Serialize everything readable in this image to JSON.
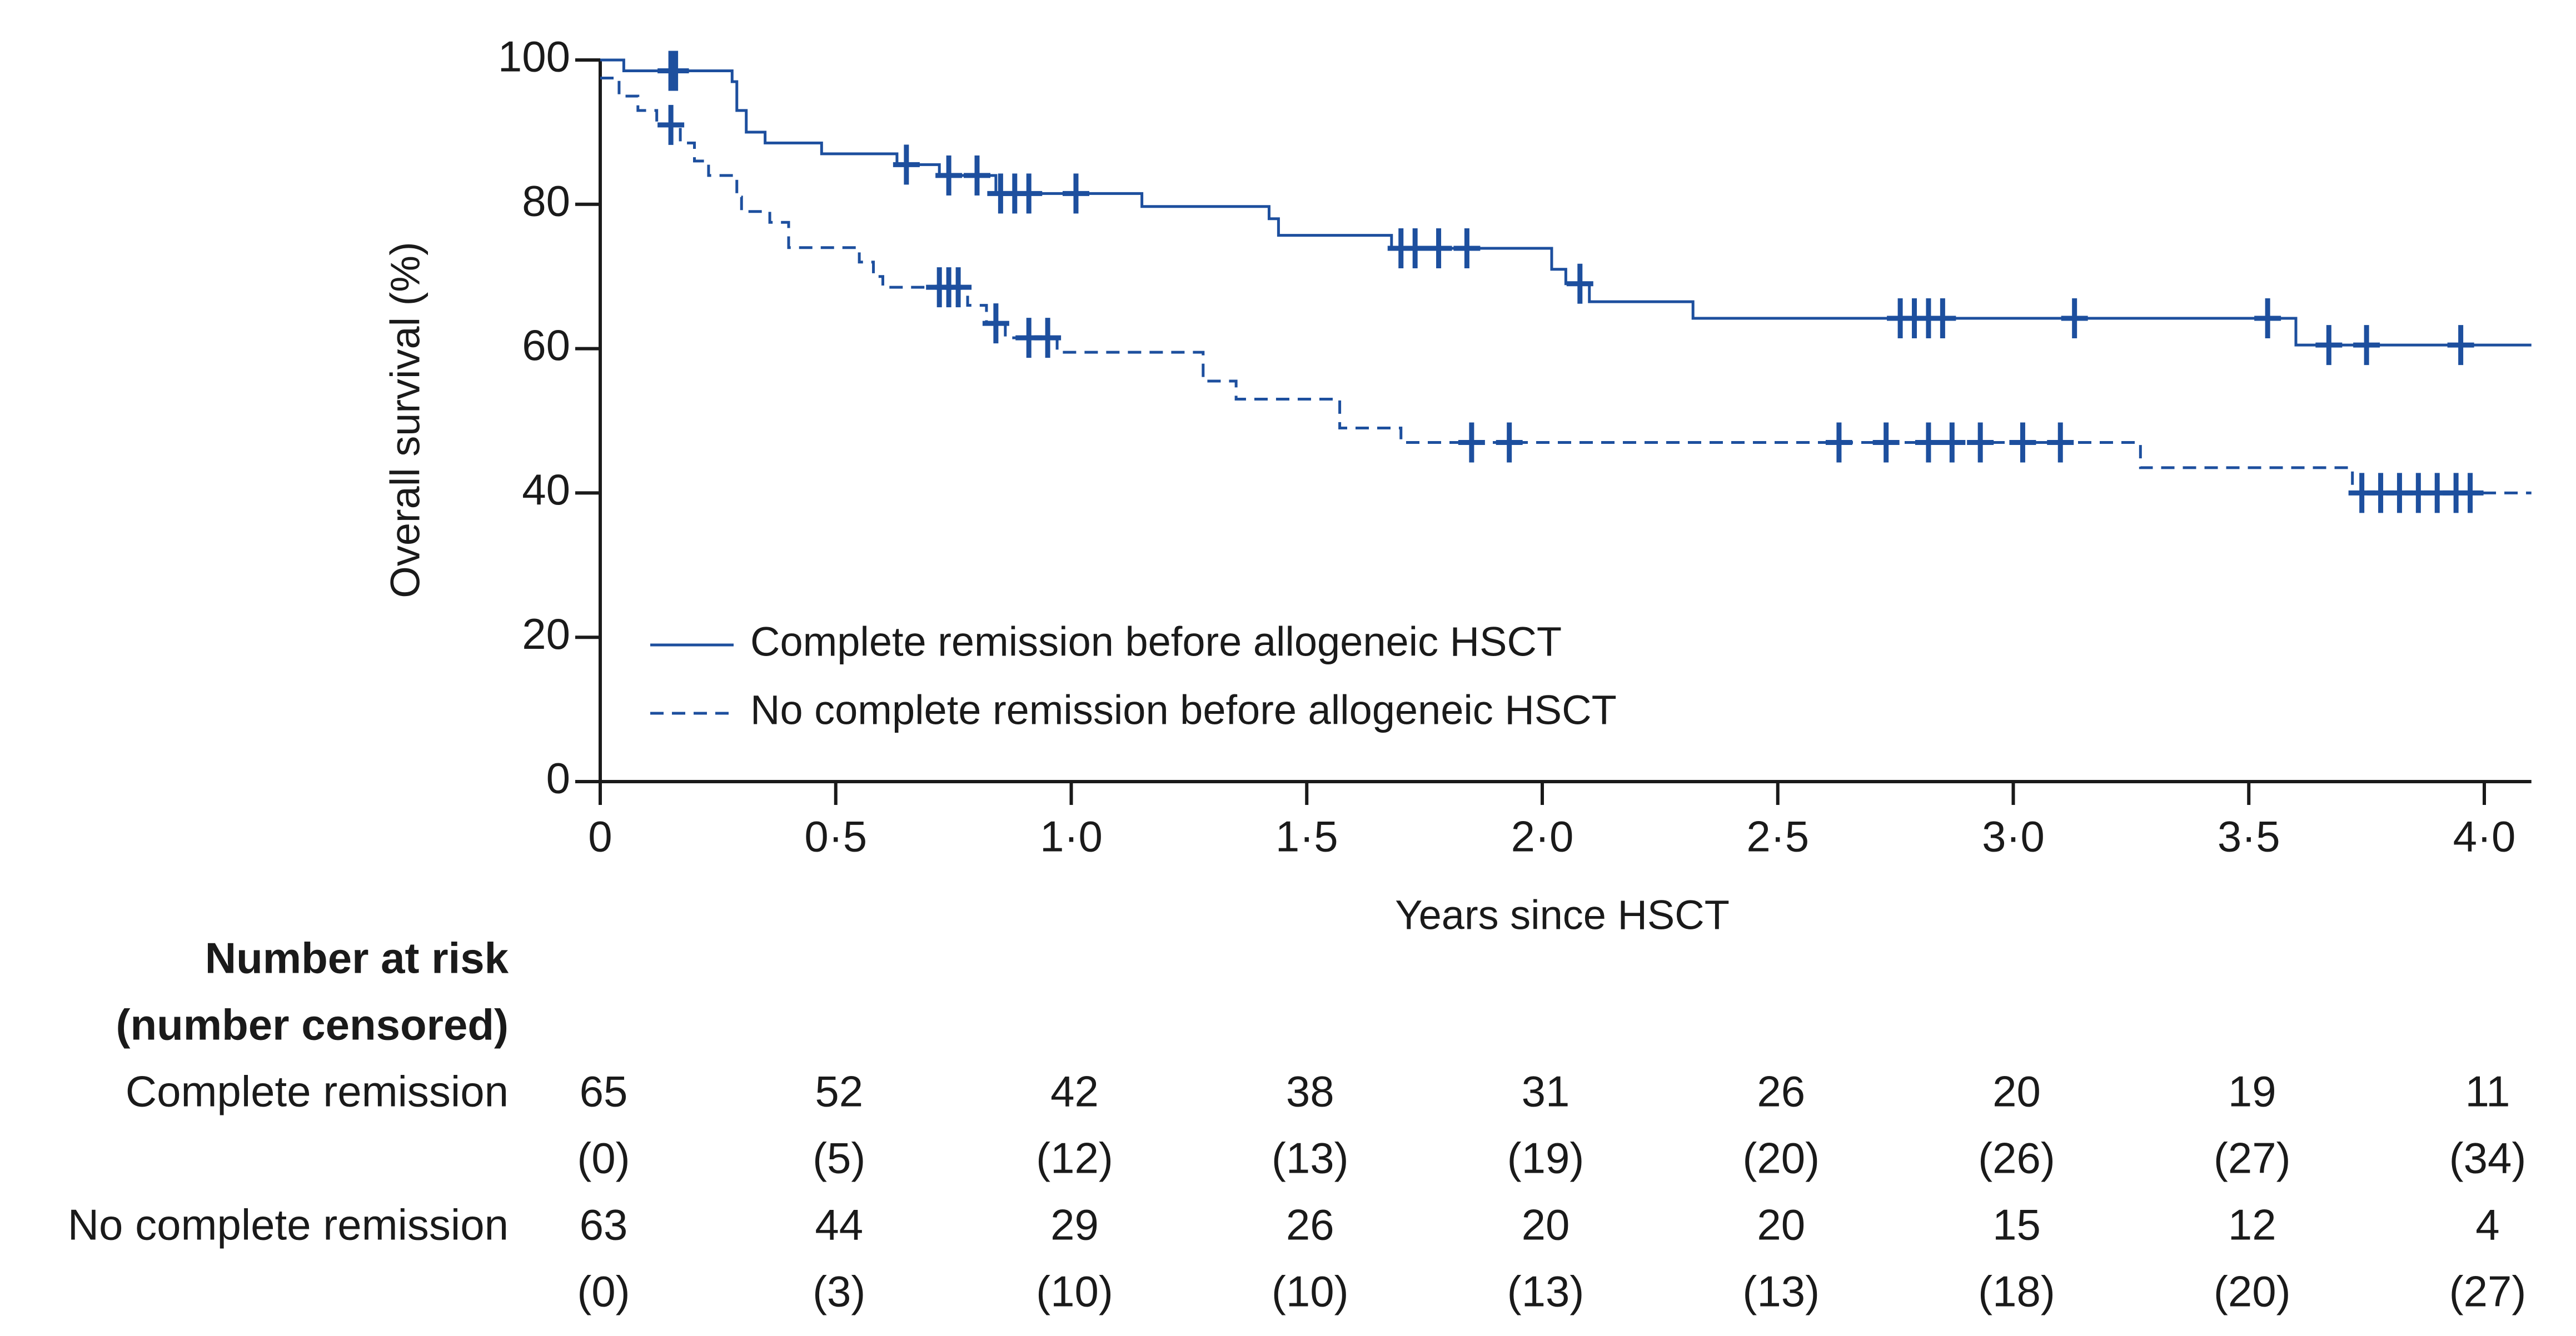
{
  "chart_data": {
    "type": "kaplan-meier",
    "xlabel": "Years since HSCT",
    "ylabel": "Overall survival (%)",
    "xlim": [
      0,
      4.1
    ],
    "ylim": [
      0,
      100
    ],
    "xticks": [
      0,
      {
        "value": 0.5,
        "label": "0·5"
      },
      {
        "value": 1,
        "label": "1·0"
      },
      {
        "value": 1.5,
        "label": "1·5"
      },
      {
        "value": 2,
        "label": "2·0"
      },
      {
        "value": 2.5,
        "label": "2·5"
      },
      {
        "value": 3,
        "label": "3·0"
      },
      {
        "value": 3.5,
        "label": "3·5"
      },
      {
        "value": 4,
        "label": "4·0"
      }
    ],
    "yticks": [
      0,
      20,
      40,
      60,
      80,
      100
    ],
    "series": [
      {
        "name": "Complete remission before allogeneic HSCT",
        "color": "#1d4f9e",
        "dashed": false,
        "x": [
          0,
          0.05,
          0.28,
          0.29,
          0.31,
          0.35,
          0.47,
          0.63,
          0.72,
          0.84,
          1.15,
          1.42,
          1.44,
          1.68,
          2.02,
          2.05,
          2.1,
          2.32,
          3.6
        ],
        "values": [
          100,
          98.5,
          97,
          93,
          90,
          88.5,
          87,
          85.5,
          84,
          81.5,
          79.7,
          78,
          75.7,
          73.9,
          71,
          69,
          66.5,
          64.2,
          60.5
        ],
        "censored_x": [
          0.15,
          0.16,
          0.65,
          0.74,
          0.8,
          0.85,
          0.88,
          0.91,
          1.01,
          1.7,
          1.73,
          1.78,
          1.84,
          2.08,
          2.76,
          2.79,
          2.82,
          2.85,
          3.13,
          3.54,
          3.67,
          3.75,
          3.95
        ]
      },
      {
        "name": "No complete remission before allogeneic HSCT",
        "color": "#1d4f9e",
        "dashed": true,
        "x": [
          0,
          0.04,
          0.08,
          0.12,
          0.17,
          0.2,
          0.23,
          0.29,
          0.3,
          0.36,
          0.4,
          0.55,
          0.58,
          0.6,
          0.78,
          0.82,
          0.86,
          0.97,
          1.28,
          1.35,
          1.57,
          1.7,
          3.27,
          3.72
        ],
        "values": [
          97.5,
          95,
          93,
          91,
          88.5,
          86,
          84,
          81,
          79,
          77.5,
          74,
          72,
          70,
          68.5,
          66,
          63.5,
          61.5,
          59.5,
          55.5,
          53,
          49,
          47,
          43.5,
          40
        ],
        "censored_x": [
          0.15,
          0.72,
          0.74,
          0.76,
          0.84,
          0.91,
          0.95,
          1.85,
          1.93,
          2.63,
          2.73,
          2.82,
          2.87,
          2.93,
          3.02,
          3.1,
          3.74,
          3.78,
          3.82,
          3.86,
          3.9,
          3.94,
          3.97
        ]
      }
    ],
    "risk_table": {
      "title": [
        "Number at risk",
        "(number censored)"
      ],
      "rows": [
        {
          "label": "Complete remission",
          "at_risk": [
            65,
            52,
            42,
            38,
            31,
            26,
            20,
            19,
            11
          ],
          "censored": [
            "(0)",
            "(5)",
            "(12)",
            "(13)",
            "(19)",
            "(20)",
            "(26)",
            "(27)",
            "(34)"
          ]
        },
        {
          "label": "No complete remission",
          "at_risk": [
            63,
            44,
            29,
            26,
            20,
            20,
            15,
            12,
            4
          ],
          "censored": [
            "(0)",
            "(3)",
            "(10)",
            "(10)",
            "(13)",
            "(13)",
            "(18)",
            "(20)",
            "(27)"
          ]
        }
      ]
    }
  }
}
